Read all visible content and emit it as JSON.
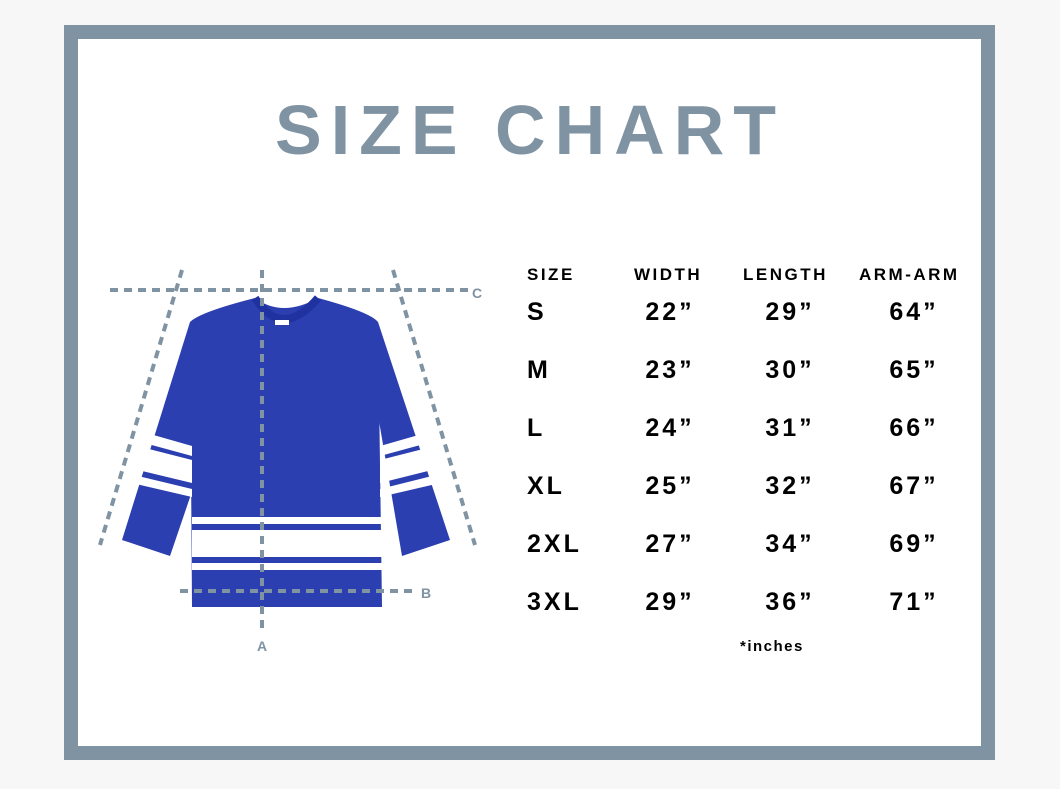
{
  "title": "SIZE CHART",
  "diagram_labels": {
    "a": "A",
    "b": "B",
    "c": "C"
  },
  "colors": {
    "frame": "#7f93a3",
    "shirt": "#2b3fb0",
    "stripe": "#ffffff"
  },
  "table": {
    "headers": [
      "SIZE",
      "WIDTH",
      "LENGTH",
      "ARM-ARM"
    ],
    "rows": [
      [
        "S",
        "22”",
        "29”",
        "64”"
      ],
      [
        "M",
        "23”",
        "30”",
        "65”"
      ],
      [
        "L",
        "24”",
        "31”",
        "66”"
      ],
      [
        "XL",
        "25”",
        "32”",
        "67”"
      ],
      [
        "2XL",
        "27”",
        "34”",
        "69”"
      ],
      [
        "3XL",
        "29”",
        "36”",
        "71”"
      ]
    ],
    "unit_note": "*inches"
  }
}
